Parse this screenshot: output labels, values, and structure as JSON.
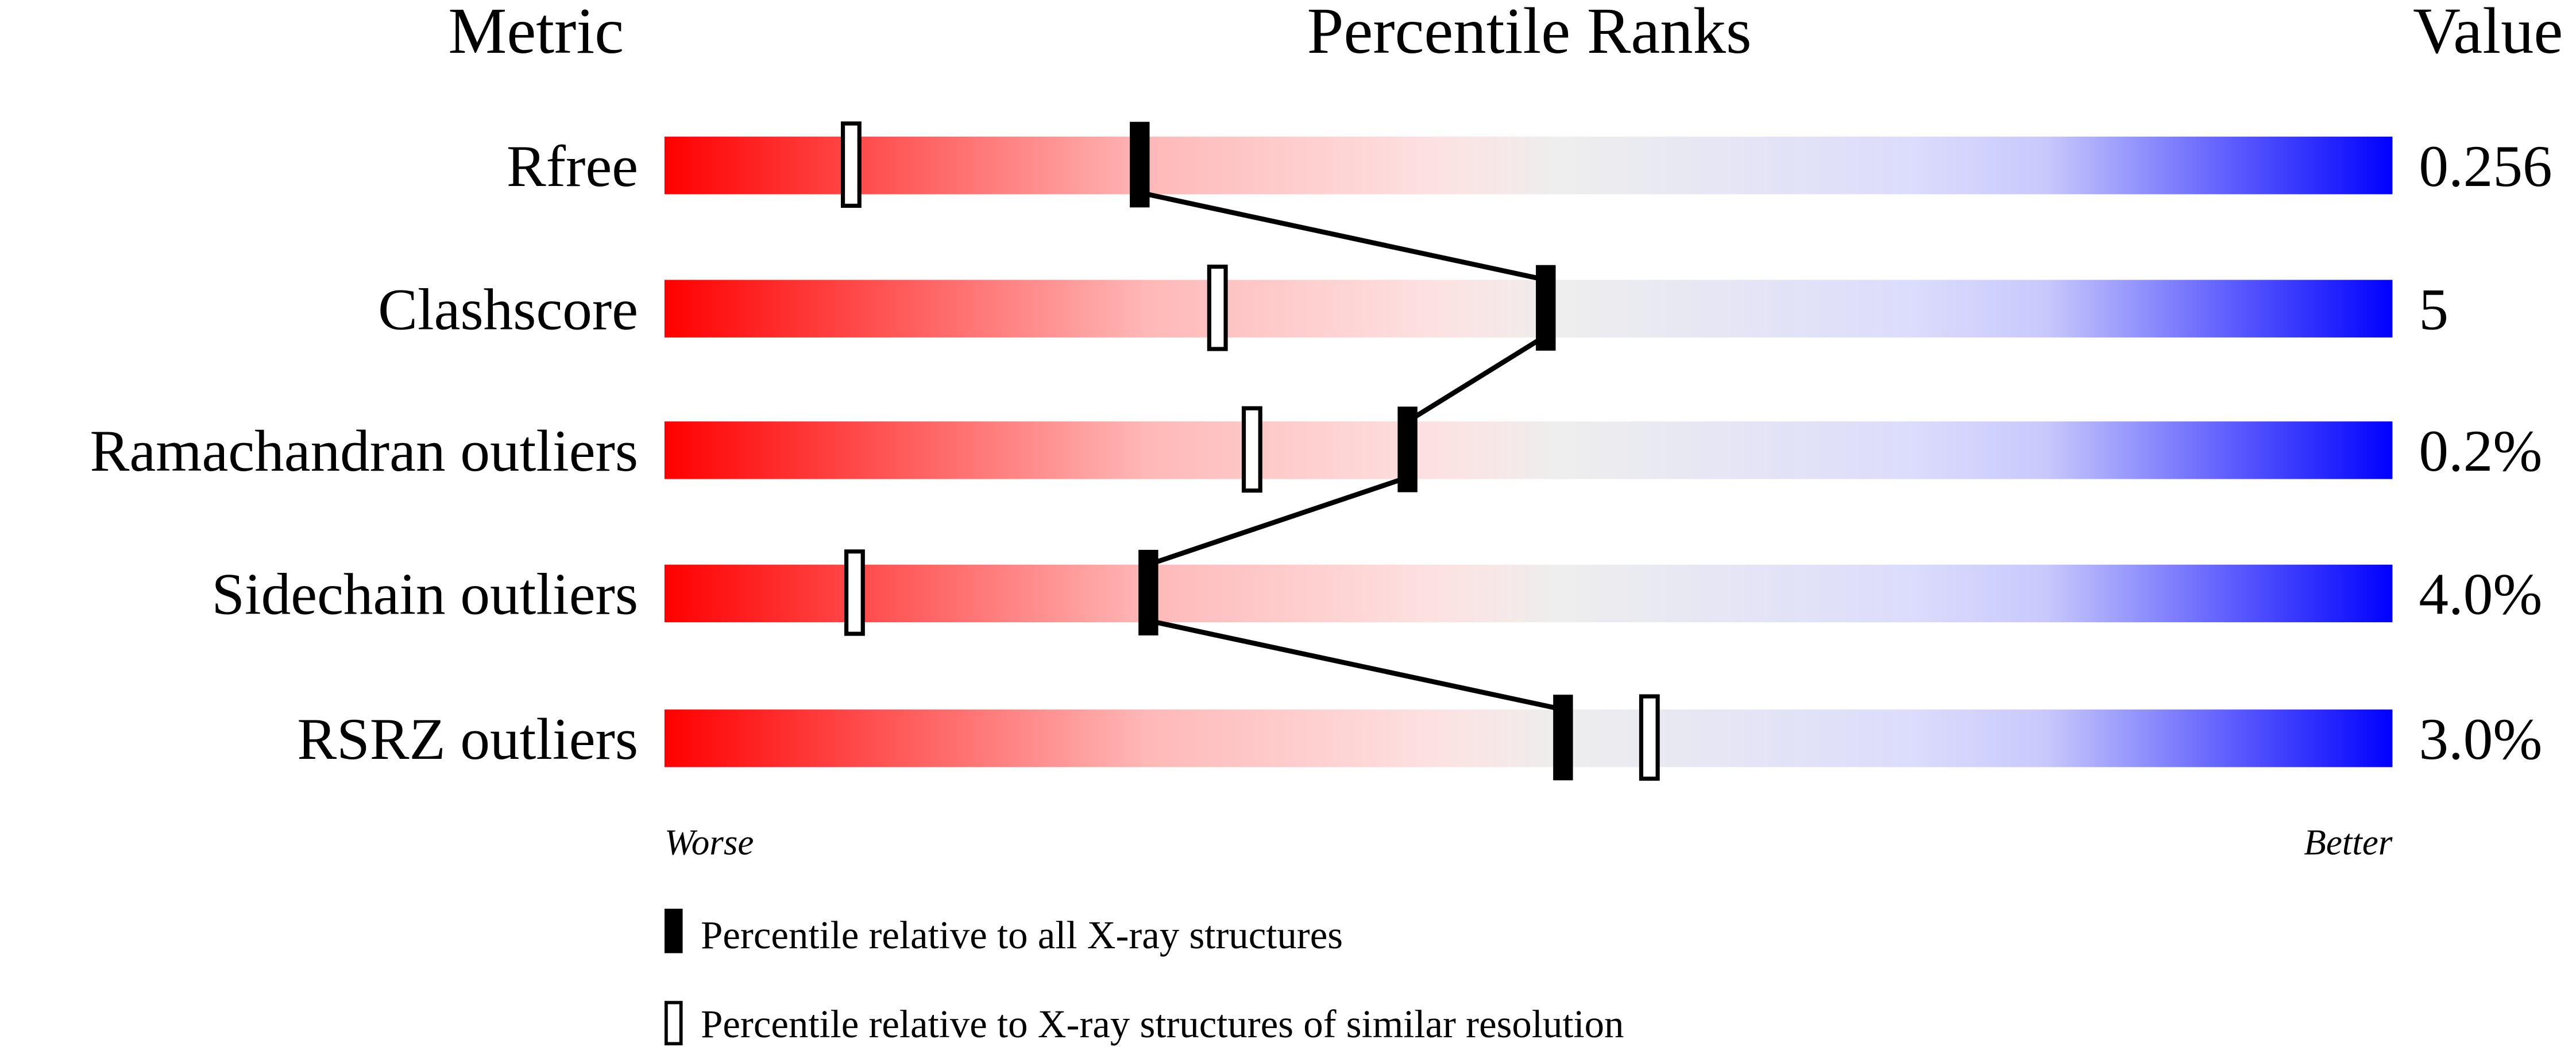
{
  "chart_data": {
    "type": "percentile-rank",
    "headers": {
      "metric": "Metric",
      "ranks": "Percentile Ranks",
      "value": "Value"
    },
    "xlim": [
      0,
      100
    ],
    "scale_labels": {
      "left": "Worse",
      "right": "Better"
    },
    "gradient_colors": {
      "worse": "#ff0000",
      "middle": "#eeeeee",
      "better": "#0000ff"
    },
    "rows": [
      {
        "metric": "Rfree",
        "value": "0.256",
        "percentile_all": 27.5,
        "percentile_similar": 10.8
      },
      {
        "metric": "Clashscore",
        "value": "5",
        "percentile_all": 51,
        "percentile_similar": 32
      },
      {
        "metric": "Ramachandran outliers",
        "value": "0.2%",
        "percentile_all": 43,
        "percentile_similar": 34
      },
      {
        "metric": "Sidechain outliers",
        "value": "4.0%",
        "percentile_all": 28,
        "percentile_similar": 11
      },
      {
        "metric": "RSRZ outliers",
        "value": "3.0%",
        "percentile_all": 52,
        "percentile_similar": 57
      }
    ],
    "legend": [
      {
        "marker": "filled",
        "label": "Percentile relative to all X-ray structures"
      },
      {
        "marker": "open",
        "label": "Percentile relative to X-ray structures of similar resolution"
      }
    ]
  }
}
